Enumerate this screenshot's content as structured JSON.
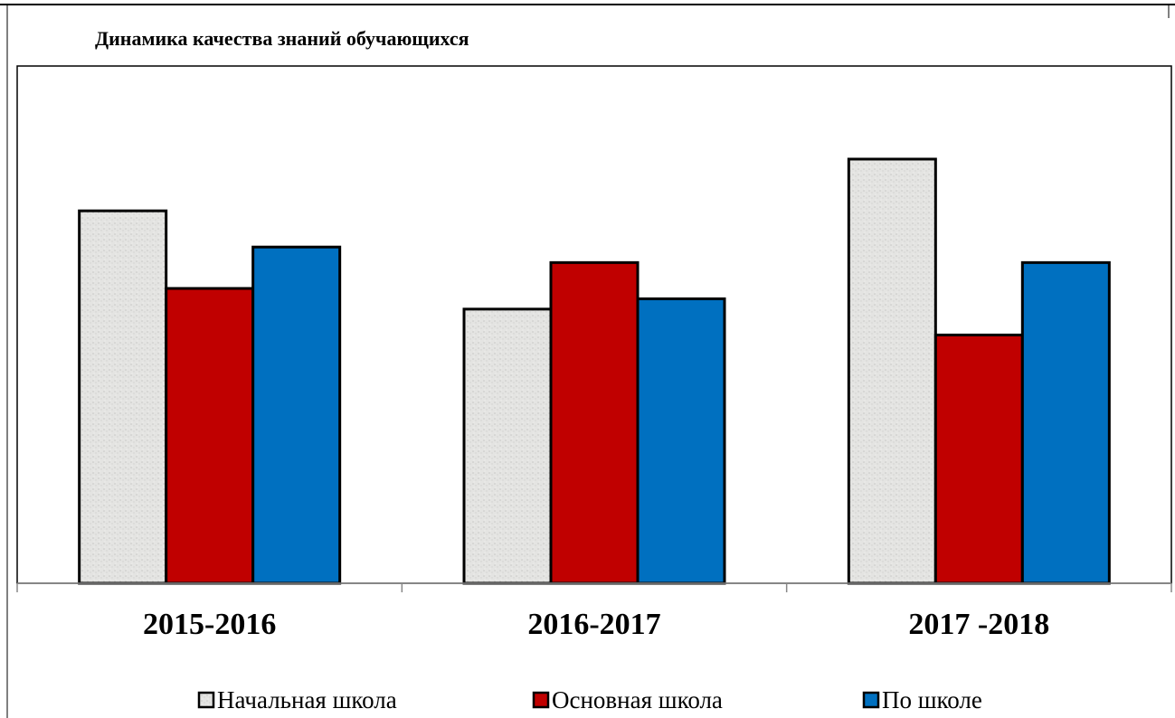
{
  "chart_data": {
    "type": "bar",
    "title": "Динамика качества знаний обучающихся",
    "categories": [
      "2015-2016",
      "2016-2017",
      "2017 -2018"
    ],
    "series": [
      {
        "name": "Начальная  школа",
        "color": "#e4e4e2",
        "values": [
          72,
          53,
          82
        ]
      },
      {
        "name": "Основная  школа",
        "color": "#c00000",
        "values": [
          57,
          62,
          48
        ]
      },
      {
        "name": "По школе",
        "color": "#0070c0",
        "values": [
          65,
          55,
          62
        ]
      }
    ],
    "ylim": [
      0,
      100
    ],
    "legend": "bottom"
  }
}
